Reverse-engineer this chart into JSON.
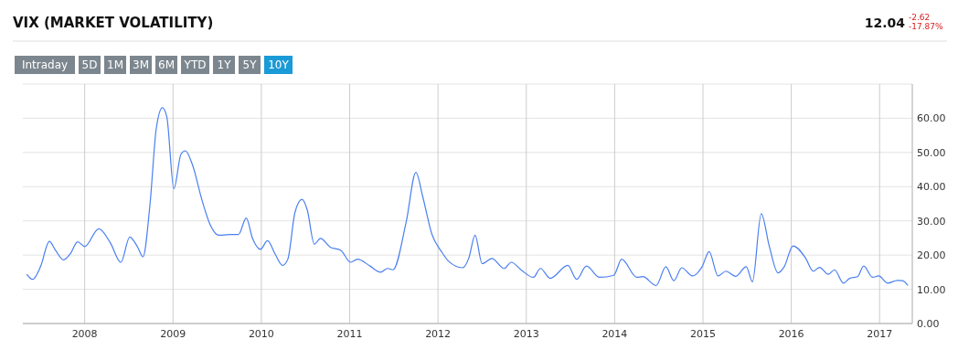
{
  "chart_data": {
    "type": "line",
    "title": "VIX (MARKET VOLATILITY)",
    "annotations": [
      "12.04",
      "-2.62",
      "-17.87%",
      "Intraday",
      "5D",
      "1M",
      "3M",
      "6M",
      "YTD",
      "1Y",
      "5Y",
      "10Y"
    ],
    "xlim": [
      2007.3,
      2017.37
    ],
    "xticks": [
      2008,
      2009,
      2010,
      2011,
      2012,
      2013,
      2014,
      2015,
      2016,
      2017
    ],
    "ylim": [
      0,
      70
    ],
    "yticks": [
      {
        "value": 0,
        "label": "0.00"
      },
      {
        "value": 10,
        "label": "10.00"
      },
      {
        "value": 20,
        "label": "20.00"
      },
      {
        "value": 30,
        "label": "30.00"
      },
      {
        "value": 40,
        "label": "40.00"
      },
      {
        "value": 50,
        "label": "50.00"
      },
      {
        "value": 60,
        "label": "60.00"
      },
      {
        "value": 70,
        "label": null
      }
    ],
    "grid": true,
    "marker": "none",
    "line_style": "solid",
    "series": [
      {
        "color": "#4a7ff0",
        "x": [
          2007.345,
          2007.41,
          2007.5,
          2007.6,
          2007.67,
          2007.76,
          2007.84,
          2007.92,
          2008.0,
          2008.16,
          2008.29,
          2008.41,
          2008.51,
          2008.6,
          2008.66,
          2008.74,
          2008.81,
          2008.88,
          2008.93,
          2009.01,
          2009.09,
          2009.14,
          2009.22,
          2009.33,
          2009.42,
          2009.52,
          2009.64,
          2009.74,
          2009.83,
          2009.9,
          2009.99,
          2010.07,
          2010.16,
          2010.24,
          2010.3,
          2010.38,
          2010.46,
          2010.52,
          2010.6,
          2010.67,
          2010.78,
          2010.9,
          2011.01,
          2011.09,
          2011.23,
          2011.35,
          2011.43,
          2011.49,
          2011.64,
          2011.75,
          2011.83,
          2011.93,
          2012.04,
          2012.12,
          2012.28,
          2012.35,
          2012.42,
          2012.5,
          2012.61,
          2012.75,
          2012.83,
          2012.94,
          2013.08,
          2013.16,
          2013.27,
          2013.47,
          2013.57,
          2013.68,
          2013.83,
          2013.99,
          2014.08,
          2014.25,
          2014.32,
          2014.47,
          2014.58,
          2014.67,
          2014.76,
          2014.88,
          2014.99,
          2015.07,
          2015.17,
          2015.26,
          2015.37,
          2015.49,
          2015.56,
          2015.66,
          2015.75,
          2015.85,
          2015.92,
          2016.02,
          2016.16,
          2016.25,
          2016.32,
          2016.42,
          2016.49,
          2016.59,
          2016.66,
          2016.75,
          2016.82,
          2016.92,
          2016.99,
          2017.09,
          2017.2,
          2017.26,
          2017.32
        ],
        "values": [
          14.4,
          12.9,
          16.6,
          24.0,
          21.4,
          18.6,
          20.5,
          23.9,
          22.5,
          27.7,
          23.6,
          17.9,
          25.3,
          22.3,
          19.5,
          35.0,
          56.9,
          63.1,
          60.4,
          39.4,
          49.5,
          50.5,
          46.4,
          35.9,
          28.9,
          25.8,
          26.0,
          26.0,
          30.8,
          24.9,
          21.7,
          24.2,
          20.1,
          17.0,
          18.8,
          32.4,
          36.3,
          33.2,
          23.2,
          24.9,
          22.3,
          21.4,
          17.9,
          18.8,
          16.8,
          15.0,
          16.1,
          15.7,
          29.7,
          44.2,
          36.8,
          26.2,
          21.0,
          18.2,
          16.3,
          19.2,
          25.8,
          17.5,
          19.0,
          16.1,
          17.9,
          15.7,
          13.5,
          16.1,
          13.2,
          17.0,
          12.9,
          16.8,
          13.5,
          14.1,
          18.8,
          13.5,
          13.7,
          11.1,
          16.6,
          12.5,
          16.3,
          13.9,
          16.6,
          21.0,
          13.9,
          15.3,
          13.8,
          16.6,
          12.2,
          32.1,
          22.7,
          14.8,
          16.6,
          22.7,
          19.2,
          15.3,
          16.4,
          14.4,
          15.7,
          11.8,
          13.2,
          13.7,
          16.8,
          13.5,
          13.9,
          11.8,
          12.6,
          12.5,
          11.1
        ]
      }
    ]
  }
}
